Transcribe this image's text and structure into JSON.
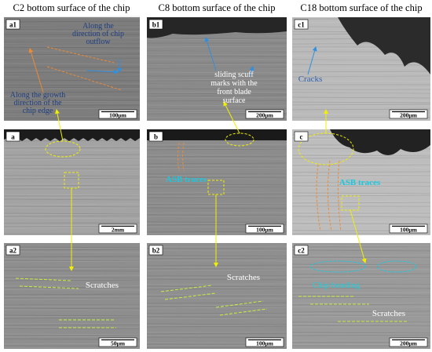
{
  "headers": [
    "C2 bottom surface of the chip",
    "C8 bottom surface of the chip",
    "C18 bottom surface of the chip"
  ],
  "panels": [
    {
      "label": "a1",
      "scale_bar": "100μm",
      "annotations": [
        [
          "Along the",
          "direction of chip",
          "outflow"
        ],
        [
          "Along the growth",
          "direction of the",
          "chip edge"
        ]
      ]
    },
    {
      "label": "b1",
      "scale_bar": "200μm",
      "annotations": [
        [
          "sliding scuff",
          "marks with the",
          "front blade",
          "surface"
        ]
      ]
    },
    {
      "label": "c1",
      "scale_bar": "200μm",
      "annotations": [
        [
          "Cracks"
        ]
      ]
    },
    {
      "label": "a",
      "scale_bar": "2mm"
    },
    {
      "label": "b",
      "scale_bar": "100μm",
      "annotations": [
        [
          "ASB traces"
        ]
      ]
    },
    {
      "label": "c",
      "scale_bar": "100μm",
      "annotations": [
        [
          "ASB traces"
        ]
      ]
    },
    {
      "label": "a2",
      "scale_bar": "50μm",
      "annotations": [
        [
          "Scratches"
        ]
      ]
    },
    {
      "label": "b2",
      "scale_bar": "100μm",
      "annotations": [
        [
          "Scratches"
        ]
      ]
    },
    {
      "label": "c2",
      "scale_bar": "200μm",
      "annotations": [
        [
          "Chip bonding"
        ],
        [
          "Scratches"
        ]
      ]
    }
  ]
}
